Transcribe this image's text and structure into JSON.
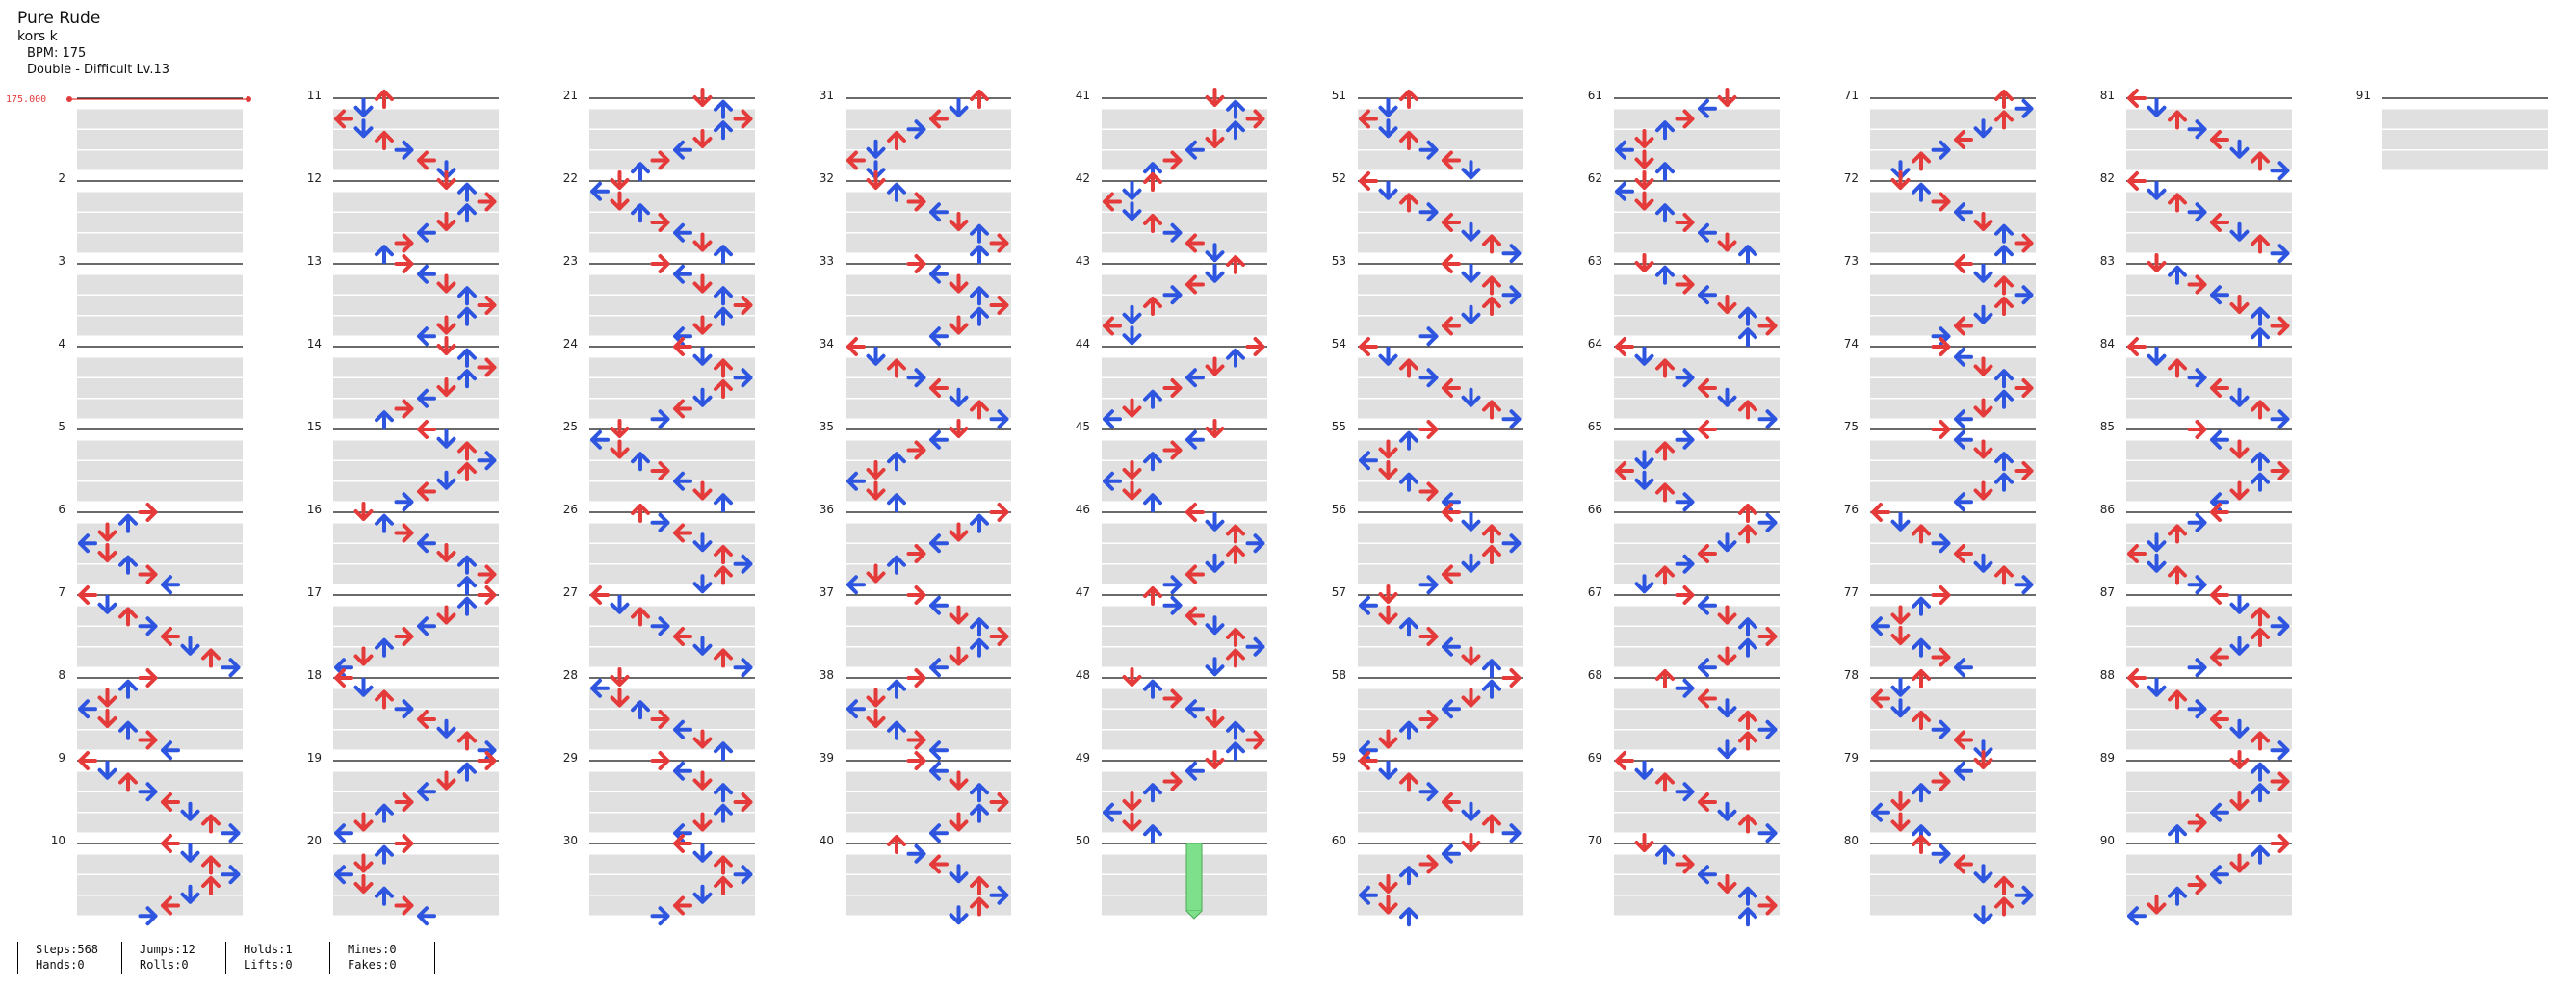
{
  "song": {
    "title": "Pure Rude",
    "artist": "kors k",
    "bpm_label": "BPM: 175",
    "difficulty_label": "Double - Difficult Lv.13"
  },
  "bpm_marker": {
    "value": "175.000"
  },
  "measures": {
    "numbers": [
      "2",
      "3",
      "4",
      "5",
      "6",
      "7",
      "8",
      "9",
      "10",
      "11",
      "12",
      "13",
      "14",
      "15",
      "16",
      "17",
      "18",
      "19",
      "20",
      "21",
      "22",
      "23",
      "24",
      "25",
      "26",
      "27",
      "28",
      "29",
      "30",
      "31",
      "32",
      "33",
      "34",
      "35",
      "36",
      "37",
      "38",
      "39",
      "40",
      "41",
      "42",
      "43",
      "44",
      "45",
      "46",
      "47",
      "48",
      "49",
      "50",
      "51",
      "52",
      "53",
      "54",
      "55",
      "56",
      "57",
      "58",
      "59",
      "60",
      "61",
      "62",
      "63",
      "64",
      "65",
      "66",
      "67",
      "68",
      "69",
      "70",
      "71",
      "72",
      "73",
      "74",
      "75",
      "76",
      "77",
      "78",
      "79",
      "80",
      "81",
      "82",
      "83",
      "84",
      "85",
      "86",
      "87",
      "88",
      "89",
      "90",
      "91"
    ]
  },
  "colors": {
    "red_arrow": "#e53a3a",
    "blue_arrow": "#2e55e0",
    "hold_green": "#7ee08a",
    "beat_band": "#e0e0e0",
    "bpm_red": "#e23b3b"
  },
  "stats": {
    "steps": "Steps:568",
    "hands": "Hands:0",
    "jumps": "Jumps:12",
    "rolls": "Rolls:0",
    "holds": "Holds:1",
    "lifts": "Lifts:0",
    "mines": "Mines:0",
    "fakes": "Fakes:0"
  }
}
